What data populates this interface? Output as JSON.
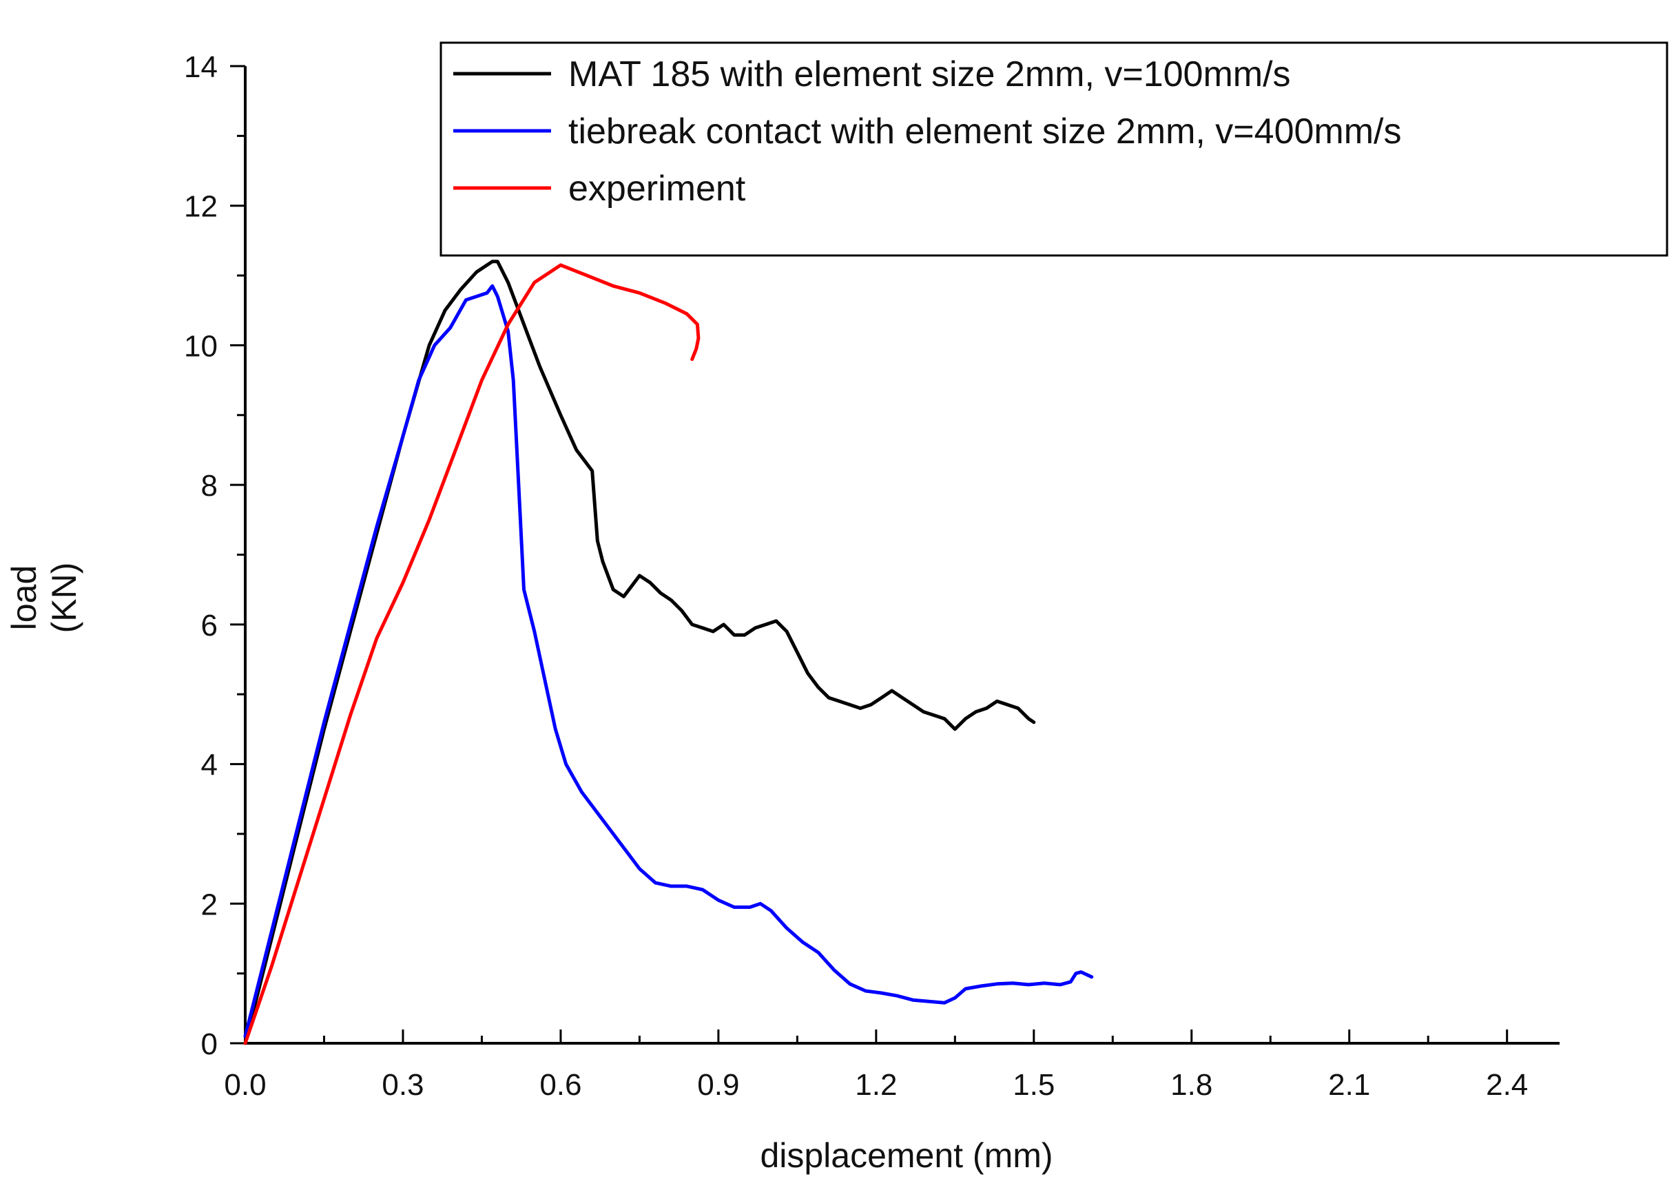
{
  "chart_data": {
    "type": "line",
    "xlabel": "displacement (mm)",
    "ylabel_lines": [
      "load",
      "(KN)"
    ],
    "xlim": [
      0,
      2.5
    ],
    "ylim": [
      0,
      14
    ],
    "xticks": [
      {
        "value": 0.0,
        "label": "0.0"
      },
      {
        "value": 0.3,
        "label": "0.3"
      },
      {
        "value": 0.6,
        "label": "0.6"
      },
      {
        "value": 0.9,
        "label": "0.9"
      },
      {
        "value": 1.2,
        "label": "1.2"
      },
      {
        "value": 1.5,
        "label": "1.5"
      },
      {
        "value": 1.8,
        "label": "1.8"
      },
      {
        "value": 2.1,
        "label": "2.1"
      },
      {
        "value": 2.4,
        "label": "2.4"
      }
    ],
    "yticks": [
      {
        "value": 0,
        "label": "0"
      },
      {
        "value": 2,
        "label": "2"
      },
      {
        "value": 4,
        "label": "4"
      },
      {
        "value": 6,
        "label": "6"
      },
      {
        "value": 8,
        "label": "8"
      },
      {
        "value": 10,
        "label": "10"
      },
      {
        "value": 12,
        "label": "12"
      },
      {
        "value": 14,
        "label": "14"
      }
    ],
    "grid": false,
    "legend_position": "top-right",
    "series": [
      {
        "name": "MAT 185 with element size 2mm, v=100mm/s",
        "color": "#000000",
        "points": [
          [
            0.0,
            0.0
          ],
          [
            0.05,
            1.5
          ],
          [
            0.1,
            3.0
          ],
          [
            0.15,
            4.5
          ],
          [
            0.2,
            5.9
          ],
          [
            0.25,
            7.3
          ],
          [
            0.3,
            8.7
          ],
          [
            0.35,
            10.0
          ],
          [
            0.38,
            10.5
          ],
          [
            0.41,
            10.8
          ],
          [
            0.44,
            11.05
          ],
          [
            0.47,
            11.2
          ],
          [
            0.48,
            11.2
          ],
          [
            0.5,
            10.9
          ],
          [
            0.53,
            10.3
          ],
          [
            0.56,
            9.7
          ],
          [
            0.6,
            9.0
          ],
          [
            0.63,
            8.5
          ],
          [
            0.655,
            8.25
          ],
          [
            0.66,
            8.2
          ],
          [
            0.67,
            7.2
          ],
          [
            0.68,
            6.9
          ],
          [
            0.7,
            6.5
          ],
          [
            0.72,
            6.4
          ],
          [
            0.74,
            6.6
          ],
          [
            0.75,
            6.7
          ],
          [
            0.77,
            6.6
          ],
          [
            0.79,
            6.45
          ],
          [
            0.81,
            6.35
          ],
          [
            0.83,
            6.2
          ],
          [
            0.85,
            6.0
          ],
          [
            0.87,
            5.95
          ],
          [
            0.89,
            5.9
          ],
          [
            0.91,
            6.0
          ],
          [
            0.93,
            5.85
          ],
          [
            0.95,
            5.85
          ],
          [
            0.97,
            5.95
          ],
          [
            0.99,
            6.0
          ],
          [
            1.01,
            6.05
          ],
          [
            1.03,
            5.9
          ],
          [
            1.05,
            5.6
          ],
          [
            1.07,
            5.3
          ],
          [
            1.09,
            5.1
          ],
          [
            1.11,
            4.95
          ],
          [
            1.13,
            4.9
          ],
          [
            1.15,
            4.85
          ],
          [
            1.17,
            4.8
          ],
          [
            1.19,
            4.85
          ],
          [
            1.21,
            4.95
          ],
          [
            1.23,
            5.05
          ],
          [
            1.25,
            4.95
          ],
          [
            1.27,
            4.85
          ],
          [
            1.29,
            4.75
          ],
          [
            1.31,
            4.7
          ],
          [
            1.33,
            4.65
          ],
          [
            1.35,
            4.5
          ],
          [
            1.37,
            4.65
          ],
          [
            1.39,
            4.75
          ],
          [
            1.41,
            4.8
          ],
          [
            1.43,
            4.9
          ],
          [
            1.45,
            4.85
          ],
          [
            1.47,
            4.8
          ],
          [
            1.49,
            4.65
          ],
          [
            1.5,
            4.6
          ]
        ]
      },
      {
        "name": "tiebreak contact with element size 2mm, v=400mm/s",
        "color": "#0000ff",
        "points": [
          [
            0.0,
            0.1
          ],
          [
            0.05,
            1.6
          ],
          [
            0.1,
            3.1
          ],
          [
            0.15,
            4.6
          ],
          [
            0.2,
            6.0
          ],
          [
            0.25,
            7.4
          ],
          [
            0.3,
            8.7
          ],
          [
            0.33,
            9.5
          ],
          [
            0.36,
            10.0
          ],
          [
            0.39,
            10.25
          ],
          [
            0.42,
            10.65
          ],
          [
            0.44,
            10.7
          ],
          [
            0.46,
            10.75
          ],
          [
            0.47,
            10.85
          ],
          [
            0.48,
            10.7
          ],
          [
            0.5,
            10.2
          ],
          [
            0.51,
            9.5
          ],
          [
            0.52,
            8.0
          ],
          [
            0.53,
            6.5
          ],
          [
            0.55,
            5.9
          ],
          [
            0.57,
            5.2
          ],
          [
            0.59,
            4.5
          ],
          [
            0.61,
            4.0
          ],
          [
            0.64,
            3.6
          ],
          [
            0.67,
            3.3
          ],
          [
            0.7,
            3.0
          ],
          [
            0.73,
            2.7
          ],
          [
            0.75,
            2.5
          ],
          [
            0.78,
            2.3
          ],
          [
            0.81,
            2.25
          ],
          [
            0.84,
            2.25
          ],
          [
            0.87,
            2.2
          ],
          [
            0.9,
            2.05
          ],
          [
            0.93,
            1.95
          ],
          [
            0.96,
            1.95
          ],
          [
            0.98,
            2.0
          ],
          [
            1.0,
            1.9
          ],
          [
            1.03,
            1.65
          ],
          [
            1.06,
            1.45
          ],
          [
            1.09,
            1.3
          ],
          [
            1.12,
            1.05
          ],
          [
            1.15,
            0.85
          ],
          [
            1.18,
            0.75
          ],
          [
            1.21,
            0.72
          ],
          [
            1.24,
            0.68
          ],
          [
            1.27,
            0.62
          ],
          [
            1.3,
            0.6
          ],
          [
            1.33,
            0.58
          ],
          [
            1.35,
            0.65
          ],
          [
            1.37,
            0.78
          ],
          [
            1.4,
            0.82
          ],
          [
            1.43,
            0.85
          ],
          [
            1.46,
            0.86
          ],
          [
            1.49,
            0.84
          ],
          [
            1.52,
            0.86
          ],
          [
            1.55,
            0.84
          ],
          [
            1.57,
            0.88
          ],
          [
            1.58,
            1.0
          ],
          [
            1.59,
            1.02
          ],
          [
            1.61,
            0.95
          ]
        ]
      },
      {
        "name": "experiment",
        "color": "#ff0000",
        "points": [
          [
            0.0,
            0.0
          ],
          [
            0.05,
            1.1
          ],
          [
            0.1,
            2.3
          ],
          [
            0.15,
            3.5
          ],
          [
            0.2,
            4.7
          ],
          [
            0.25,
            5.8
          ],
          [
            0.3,
            6.6
          ],
          [
            0.35,
            7.5
          ],
          [
            0.4,
            8.5
          ],
          [
            0.45,
            9.5
          ],
          [
            0.5,
            10.3
          ],
          [
            0.55,
            10.9
          ],
          [
            0.6,
            11.15
          ],
          [
            0.65,
            11.0
          ],
          [
            0.7,
            10.85
          ],
          [
            0.75,
            10.75
          ],
          [
            0.8,
            10.6
          ],
          [
            0.84,
            10.45
          ],
          [
            0.86,
            10.3
          ],
          [
            0.862,
            10.1
          ],
          [
            0.858,
            9.95
          ],
          [
            0.85,
            9.8
          ]
        ]
      }
    ]
  }
}
